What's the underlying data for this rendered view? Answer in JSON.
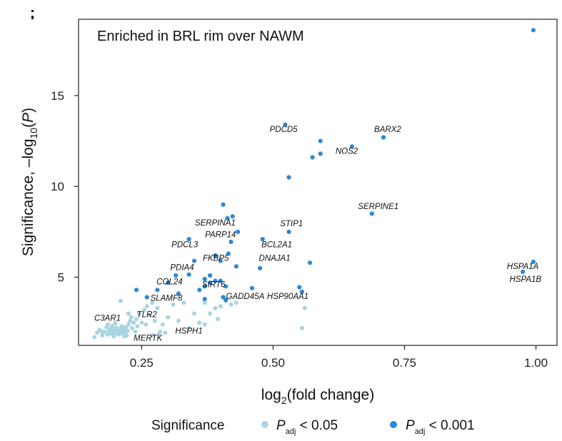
{
  "chart_data": {
    "type": "scatter",
    "title": "Enriched in BRL rim over NAWM",
    "xlabel": {
      "base": "log",
      "sub": "2",
      "rest": "(fold change)"
    },
    "ylabel": {
      "pre": "Significance, –log",
      "sub": "10",
      "rest": "(P)"
    },
    "xlim": [
      0.13,
      1.04
    ],
    "ylim": [
      1.25,
      19.2
    ],
    "xticks": [
      0.25,
      0.5,
      0.75,
      1.0
    ],
    "xtick_labels": [
      "0.25",
      "0.50",
      "0.75",
      "1.00"
    ],
    "yticks": [
      5,
      10,
      15
    ],
    "ytick_labels": [
      "5",
      "10",
      "15"
    ],
    "grid": false,
    "colors": {
      "low": "#a8d5e0",
      "high": "#2b89d9"
    },
    "legend": {
      "position": "bottom",
      "title": "Significance",
      "items": [
        {
          "key": "low",
          "p": "P",
          "sub": "adj",
          "text": " < 0.05"
        },
        {
          "key": "high",
          "p": "P",
          "sub": "adj",
          "text": " < 0.001"
        }
      ]
    },
    "series": [
      {
        "key": "low",
        "points": [
          [
            0.16,
            1.7
          ],
          [
            0.165,
            1.95
          ],
          [
            0.17,
            2.1
          ],
          [
            0.175,
            1.8
          ],
          [
            0.18,
            2.0
          ],
          [
            0.183,
            2.25
          ],
          [
            0.185,
            1.85
          ],
          [
            0.188,
            2.05
          ],
          [
            0.19,
            2.15
          ],
          [
            0.192,
            1.9
          ],
          [
            0.194,
            2.3
          ],
          [
            0.196,
            2.0
          ],
          [
            0.198,
            2.1
          ],
          [
            0.2,
            1.95
          ],
          [
            0.202,
            2.2
          ],
          [
            0.204,
            2.05
          ],
          [
            0.206,
            1.85
          ],
          [
            0.208,
            2.15
          ],
          [
            0.21,
            2.0
          ],
          [
            0.212,
            2.3
          ],
          [
            0.214,
            1.9
          ],
          [
            0.216,
            2.1
          ],
          [
            0.218,
            2.0
          ],
          [
            0.22,
            2.25
          ],
          [
            0.222,
            1.8
          ],
          [
            0.225,
            2.4
          ],
          [
            0.228,
            2.6
          ],
          [
            0.23,
            2.8
          ],
          [
            0.232,
            2.2
          ],
          [
            0.235,
            2.5
          ],
          [
            0.238,
            2.0
          ],
          [
            0.24,
            2.7
          ],
          [
            0.242,
            2.3
          ],
          [
            0.245,
            3.0
          ],
          [
            0.25,
            2.5
          ],
          [
            0.255,
            3.2
          ],
          [
            0.258,
            2.4
          ],
          [
            0.26,
            3.4
          ],
          [
            0.265,
            2.9
          ],
          [
            0.27,
            3.6
          ],
          [
            0.275,
            2.6
          ],
          [
            0.28,
            3.3
          ],
          [
            0.285,
            2.0
          ],
          [
            0.29,
            2.4
          ],
          [
            0.295,
            1.95
          ],
          [
            0.3,
            2.8
          ],
          [
            0.31,
            3.5
          ],
          [
            0.32,
            2.6
          ],
          [
            0.33,
            3.6
          ],
          [
            0.34,
            2.2
          ],
          [
            0.35,
            3.0
          ],
          [
            0.36,
            2.5
          ],
          [
            0.37,
            3.6
          ],
          [
            0.38,
            3.0
          ],
          [
            0.39,
            3.3
          ],
          [
            0.4,
            3.4
          ],
          [
            0.41,
            3.7
          ],
          [
            0.42,
            3.5
          ],
          [
            0.43,
            3.6
          ],
          [
            0.555,
            2.2
          ],
          [
            0.56,
            3.3
          ],
          [
            0.21,
            3.7
          ],
          [
            0.225,
            3.0
          ],
          [
            0.175,
            2.0
          ],
          [
            0.186,
            2.4
          ],
          [
            0.197,
            1.75
          ],
          [
            0.2,
            2.45
          ],
          [
            0.213,
            2.2
          ],
          [
            0.217,
            1.75
          ],
          [
            0.223,
            2.05
          ],
          [
            0.27,
            1.8
          ],
          [
            0.283,
            1.9
          ],
          [
            0.37,
            2.4
          ],
          [
            0.395,
            2.7
          ]
        ]
      },
      {
        "key": "high",
        "points": [
          [
            0.995,
            18.6
          ],
          [
            0.523,
            13.4
          ],
          [
            0.59,
            12.5
          ],
          [
            0.65,
            12.2
          ],
          [
            0.71,
            12.7
          ],
          [
            0.59,
            11.8
          ],
          [
            0.575,
            11.6
          ],
          [
            0.53,
            10.5
          ],
          [
            0.688,
            8.5
          ],
          [
            0.405,
            9.0
          ],
          [
            0.413,
            8.25
          ],
          [
            0.423,
            8.35
          ],
          [
            0.433,
            7.5
          ],
          [
            0.42,
            6.95
          ],
          [
            0.48,
            7.1
          ],
          [
            0.53,
            7.5
          ],
          [
            0.34,
            7.1
          ],
          [
            0.35,
            5.9
          ],
          [
            0.39,
            6.2
          ],
          [
            0.4,
            5.9
          ],
          [
            0.415,
            6.3
          ],
          [
            0.43,
            5.6
          ],
          [
            0.475,
            5.5
          ],
          [
            0.57,
            5.8
          ],
          [
            0.995,
            5.85
          ],
          [
            0.975,
            5.3
          ],
          [
            0.34,
            5.15
          ],
          [
            0.315,
            5.1
          ],
          [
            0.38,
            5.1
          ],
          [
            0.4,
            4.8
          ],
          [
            0.37,
            4.9
          ],
          [
            0.38,
            4.7
          ],
          [
            0.39,
            4.8
          ],
          [
            0.41,
            4.5
          ],
          [
            0.3,
            4.7
          ],
          [
            0.24,
            4.3
          ],
          [
            0.26,
            3.9
          ],
          [
            0.28,
            4.3
          ],
          [
            0.32,
            4.1
          ],
          [
            0.36,
            4.3
          ],
          [
            0.37,
            3.8
          ],
          [
            0.405,
            3.9
          ],
          [
            0.41,
            3.75
          ],
          [
            0.46,
            4.4
          ],
          [
            0.55,
            4.45
          ],
          [
            0.555,
            4.2
          ],
          [
            0.37,
            4.5
          ]
        ]
      }
    ],
    "labels": [
      {
        "text": "PDCD5",
        "x": 0.52,
        "y": 13.0
      },
      {
        "text": "BARX2",
        "x": 0.718,
        "y": 13.0
      },
      {
        "text": "NOS2",
        "x": 0.64,
        "y": 11.8
      },
      {
        "text": "SERPINE1",
        "x": 0.7,
        "y": 8.75
      },
      {
        "text": "SERPINA1",
        "x": 0.39,
        "y": 7.85
      },
      {
        "text": "STIP1",
        "x": 0.535,
        "y": 7.8
      },
      {
        "text": "PARP14",
        "x": 0.4,
        "y": 7.2
      },
      {
        "text": "PDCL3",
        "x": 0.332,
        "y": 6.65
      },
      {
        "text": "BCL2A1",
        "x": 0.507,
        "y": 6.65
      },
      {
        "text": "FKBP5",
        "x": 0.391,
        "y": 5.9
      },
      {
        "text": "DNAJA1",
        "x": 0.503,
        "y": 5.9
      },
      {
        "text": "HSPA1A",
        "x": 0.975,
        "y": 5.45
      },
      {
        "text": "PDIA4",
        "x": 0.327,
        "y": 5.4
      },
      {
        "text": "HSPA1B",
        "x": 0.98,
        "y": 4.75
      },
      {
        "text": "COL24",
        "x": 0.303,
        "y": 4.6
      },
      {
        "text": "SIRT6",
        "x": 0.387,
        "y": 4.45
      },
      {
        "text": "GADD45A",
        "x": 0.447,
        "y": 3.8
      },
      {
        "text": "HSP90AA1",
        "x": 0.528,
        "y": 3.8
      },
      {
        "text": "SLAMF8",
        "x": 0.297,
        "y": 3.7
      },
      {
        "text": "TLR2",
        "x": 0.26,
        "y": 2.8
      },
      {
        "text": "C3AR1",
        "x": 0.185,
        "y": 2.6
      },
      {
        "text": "HSPH1",
        "x": 0.34,
        "y": 1.9
      },
      {
        "text": "MERTK",
        "x": 0.262,
        "y": 1.5
      }
    ]
  }
}
